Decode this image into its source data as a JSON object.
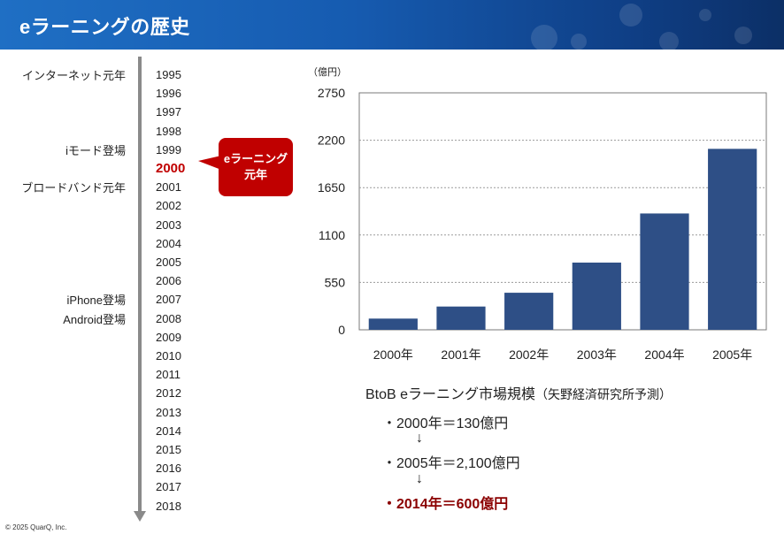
{
  "header": {
    "title": "eラーニングの歴史"
  },
  "timeline": {
    "years": [
      "1995",
      "1996",
      "1997",
      "1998",
      "1999",
      "2000",
      "2001",
      "2002",
      "2003",
      "2004",
      "2005",
      "2006",
      "2007",
      "2008",
      "2009",
      "2010",
      "2011",
      "2012",
      "2013",
      "2014",
      "2015",
      "2016",
      "2017",
      "2018"
    ],
    "highlight_year": "2000",
    "events": [
      {
        "year": "1995",
        "label": "インターネット元年"
      },
      {
        "year": "1999",
        "label": "iモード登場"
      },
      {
        "year": "2001",
        "label": "ブロードバンド元年"
      },
      {
        "year": "2007",
        "label": "iPhone登場"
      },
      {
        "year": "2008",
        "label": "Android登場"
      }
    ],
    "callout": {
      "line1": "eラーニング",
      "line2": "元年"
    }
  },
  "chart_data": {
    "type": "bar",
    "categories": [
      "2000年",
      "2001年",
      "2002年",
      "2003年",
      "2004年",
      "2005年"
    ],
    "values": [
      130,
      270,
      430,
      780,
      1350,
      2100
    ],
    "unit_label": "（億円）",
    "yticks": [
      "0",
      "550",
      "1100",
      "1650",
      "2200",
      "2750"
    ],
    "ylim": [
      0,
      2750
    ],
    "grid": true,
    "bar_color": "#2e4f86"
  },
  "caption": {
    "title": "BtoB eラーニング市場規模",
    "source": "（矢野経済研究所予測）",
    "lines": [
      "・2000年＝130億円",
      "・2005年＝2,100億円",
      "・2014年＝600億円"
    ],
    "arrow": "↓"
  },
  "footer": {
    "copyright": "© 2025 QuarQ, Inc."
  }
}
